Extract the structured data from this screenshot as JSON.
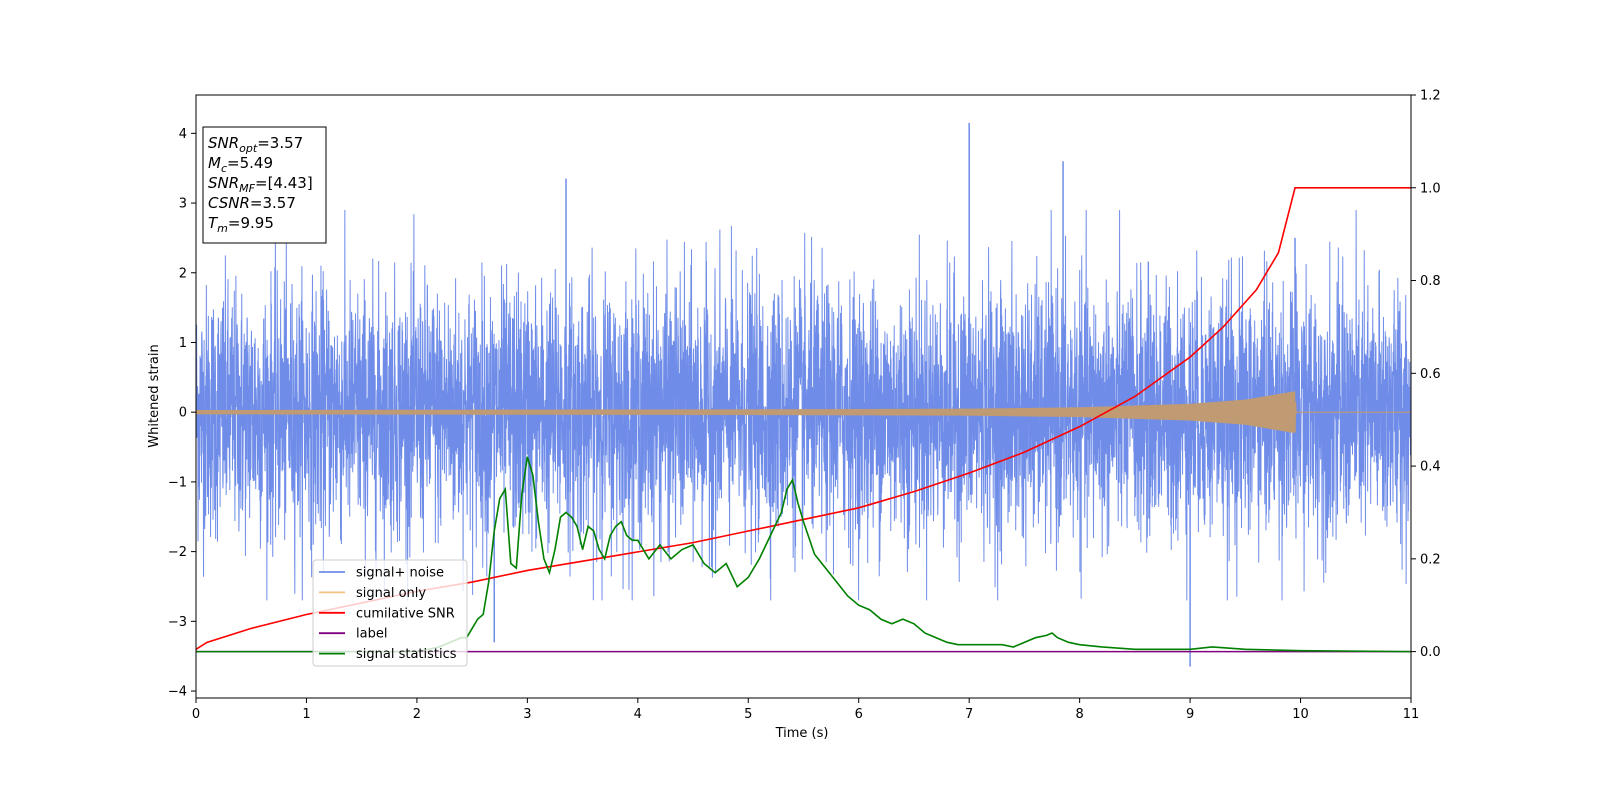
{
  "chart_data": {
    "type": "line",
    "xlabel": "Time (s)",
    "ylabel": "Whitened strain",
    "xlim": [
      0,
      11
    ],
    "ylim_left": [
      -4.1,
      4.55
    ],
    "ylim_right": [
      -0.1,
      1.2
    ],
    "x_ticks": [
      0,
      1,
      2,
      3,
      4,
      5,
      6,
      7,
      8,
      9,
      10,
      11
    ],
    "y_ticks_left": [
      -4,
      -3,
      -2,
      -1,
      0,
      1,
      2,
      3,
      4
    ],
    "y_ticks_right": [
      0.0,
      0.2,
      0.4,
      0.6,
      0.8,
      1.0,
      1.2
    ],
    "grid": false,
    "legend_position": "lower-left",
    "series": [
      {
        "name": "signal+ noise",
        "color": "#6f8de8",
        "axis": "left",
        "description_type": "noise",
        "peaks": [
          [
            7.0,
            4.15
          ],
          [
            7.85,
            3.6
          ],
          [
            3.35,
            3.35
          ],
          [
            9.95,
            2.5
          ],
          [
            9.0,
            -3.65
          ],
          [
            2.7,
            -3.3
          ]
        ]
      },
      {
        "name": "signal only",
        "color": "#f5c27a",
        "axis": "left",
        "envelope": [
          [
            0,
            0.03
          ],
          [
            5,
            0.04
          ],
          [
            7,
            0.05
          ],
          [
            8,
            0.07
          ],
          [
            9,
            0.12
          ],
          [
            9.5,
            0.18
          ],
          [
            9.95,
            0.3
          ],
          [
            9.96,
            0.0
          ],
          [
            11,
            0.0
          ]
        ]
      },
      {
        "name": "cumilative SNR",
        "color": "#ff0000",
        "axis": "right",
        "x": [
          0,
          0.1,
          0.5,
          1,
          1.5,
          2,
          2.5,
          3,
          3.5,
          4,
          4.5,
          5,
          5.5,
          6,
          6.5,
          7,
          7.5,
          8,
          8.5,
          9,
          9.3,
          9.6,
          9.8,
          9.95,
          10,
          11
        ],
        "y": [
          0.005,
          0.02,
          0.05,
          0.08,
          0.105,
          0.13,
          0.15,
          0.175,
          0.195,
          0.215,
          0.235,
          0.26,
          0.285,
          0.31,
          0.345,
          0.385,
          0.43,
          0.485,
          0.55,
          0.635,
          0.7,
          0.78,
          0.86,
          1.0,
          1.0,
          1.0
        ]
      },
      {
        "name": "label",
        "color": "#800080",
        "axis": "right",
        "x": [
          0,
          11
        ],
        "y": [
          0.0,
          0.0
        ]
      },
      {
        "name": "signal statistics",
        "color": "#008000",
        "axis": "right",
        "x": [
          0,
          0.5,
          1,
          1.5,
          2,
          2.2,
          2.3,
          2.4,
          2.45,
          2.5,
          2.55,
          2.6,
          2.65,
          2.7,
          2.75,
          2.8,
          2.85,
          2.9,
          2.95,
          3.0,
          3.05,
          3.1,
          3.15,
          3.2,
          3.25,
          3.3,
          3.35,
          3.4,
          3.45,
          3.5,
          3.55,
          3.6,
          3.65,
          3.7,
          3.75,
          3.8,
          3.85,
          3.9,
          3.95,
          4.0,
          4.1,
          4.2,
          4.3,
          4.4,
          4.5,
          4.6,
          4.7,
          4.8,
          4.9,
          5.0,
          5.1,
          5.2,
          5.3,
          5.35,
          5.4,
          5.45,
          5.5,
          5.6,
          5.7,
          5.8,
          5.9,
          6.0,
          6.1,
          6.2,
          6.3,
          6.4,
          6.5,
          6.6,
          6.7,
          6.8,
          6.9,
          7.0,
          7.1,
          7.2,
          7.3,
          7.4,
          7.5,
          7.6,
          7.7,
          7.75,
          7.8,
          7.9,
          8.0,
          8.2,
          8.5,
          9.0,
          9.2,
          9.5,
          10.0,
          11.0
        ],
        "y": [
          0.0,
          0.0,
          0.0,
          0.0,
          0.0,
          0.01,
          0.02,
          0.03,
          0.03,
          0.05,
          0.07,
          0.08,
          0.15,
          0.26,
          0.33,
          0.35,
          0.19,
          0.18,
          0.34,
          0.42,
          0.38,
          0.28,
          0.2,
          0.17,
          0.22,
          0.29,
          0.3,
          0.29,
          0.27,
          0.22,
          0.27,
          0.26,
          0.22,
          0.2,
          0.25,
          0.27,
          0.28,
          0.25,
          0.24,
          0.24,
          0.2,
          0.23,
          0.2,
          0.22,
          0.23,
          0.19,
          0.17,
          0.19,
          0.14,
          0.16,
          0.2,
          0.25,
          0.3,
          0.35,
          0.37,
          0.32,
          0.28,
          0.21,
          0.18,
          0.15,
          0.12,
          0.1,
          0.09,
          0.07,
          0.06,
          0.07,
          0.06,
          0.04,
          0.03,
          0.02,
          0.015,
          0.015,
          0.015,
          0.015,
          0.015,
          0.01,
          0.02,
          0.03,
          0.035,
          0.04,
          0.03,
          0.02,
          0.015,
          0.01,
          0.005,
          0.005,
          0.01,
          0.005,
          0.002,
          0.0
        ]
      }
    ],
    "annotation": {
      "lines": [
        {
          "var": "SNR",
          "sub": "opt",
          "value": "=3.57"
        },
        {
          "var": "M",
          "sub": "c",
          "value": "=5.49"
        },
        {
          "var": "SNR",
          "sub": "MF",
          "value": "=[4.43]"
        },
        {
          "var": "CSNR",
          "sub": "",
          "value": "=3.57"
        },
        {
          "var": "T",
          "sub": "m",
          "value": "=9.95"
        }
      ]
    }
  }
}
